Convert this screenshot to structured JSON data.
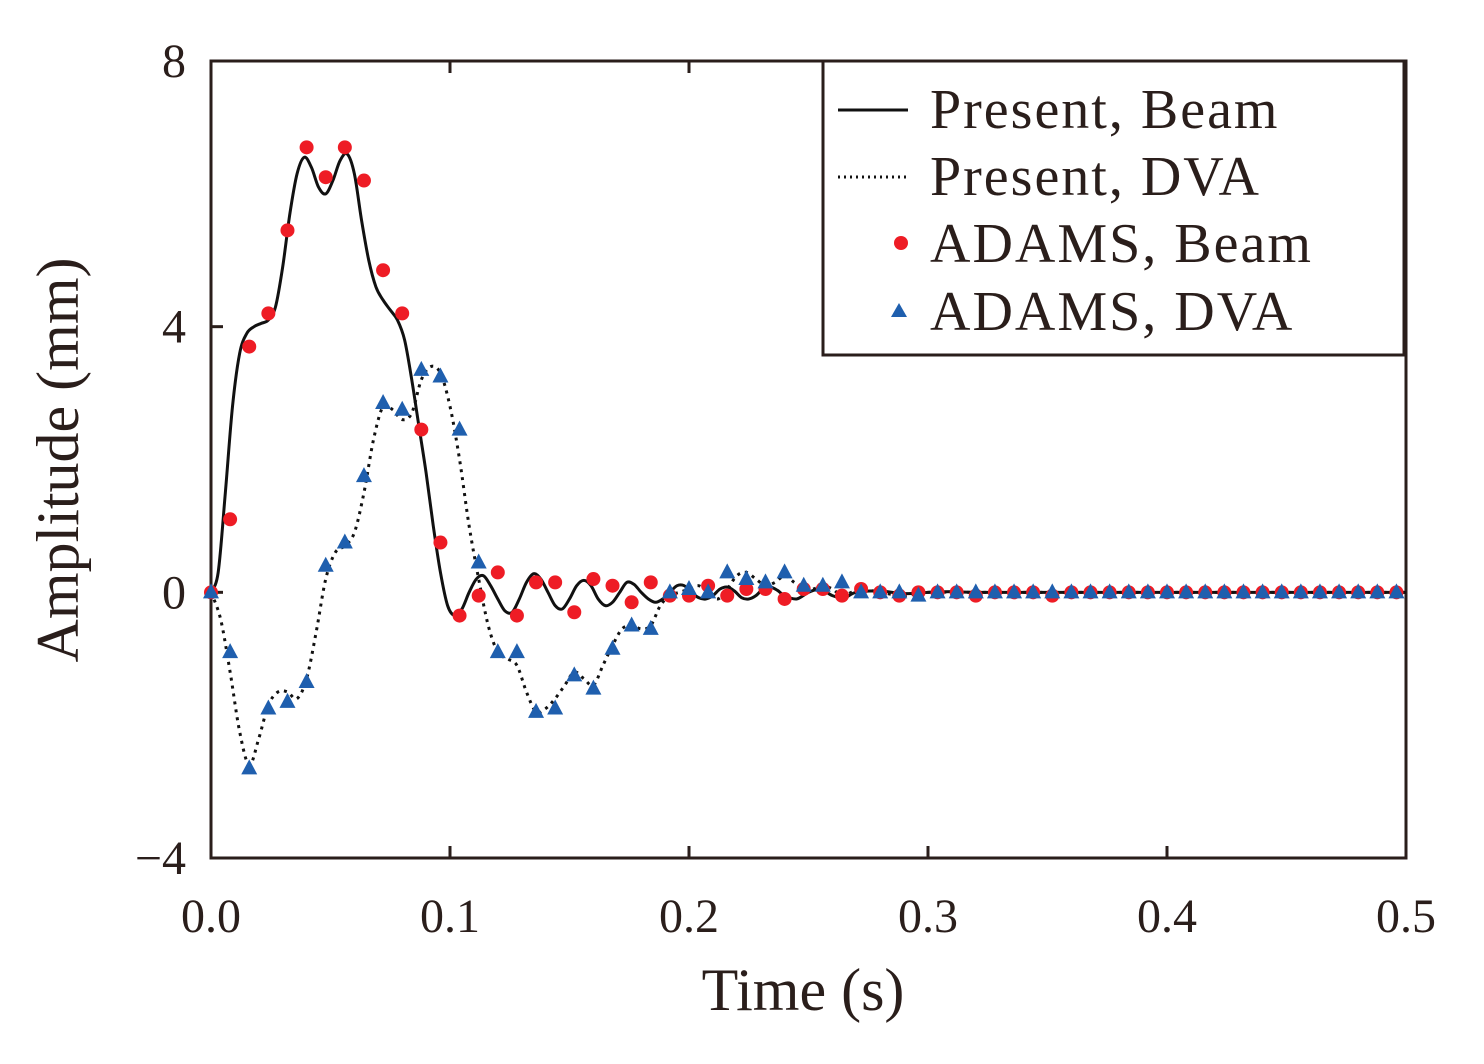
{
  "chart_data": {
    "type": "line",
    "title": "",
    "xlabel": "Time (s)",
    "ylabel": "Amplitude (mm)",
    "xlim": [
      0.0,
      0.5
    ],
    "ylim": [
      -4,
      8
    ],
    "x_ticks": [
      0.0,
      0.1,
      0.2,
      0.3,
      0.4,
      0.5
    ],
    "x_tick_labels": [
      "0.0",
      "0.1",
      "0.2",
      "0.3",
      "0.4",
      "0.5"
    ],
    "y_ticks": [
      -4,
      0,
      4,
      8
    ],
    "y_tick_labels": [
      "−4",
      "0",
      "4",
      "8"
    ],
    "grid": false,
    "legend_position": "top-right",
    "colors": {
      "axis": "#2a1e1b",
      "line": "#111111",
      "beam_marker": "#ee1c25",
      "dva_marker": "#1f5fae"
    },
    "series": [
      {
        "name": "Present, Beam",
        "style": "solid",
        "x": [
          0.0,
          0.003,
          0.006,
          0.009,
          0.012,
          0.015,
          0.018,
          0.021,
          0.024,
          0.027,
          0.03,
          0.033,
          0.036,
          0.039,
          0.042,
          0.045,
          0.048,
          0.051,
          0.054,
          0.057,
          0.06,
          0.063,
          0.066,
          0.069,
          0.072,
          0.075,
          0.078,
          0.081,
          0.084,
          0.087,
          0.09,
          0.093,
          0.096,
          0.099,
          0.102,
          0.105,
          0.108,
          0.111,
          0.114,
          0.117,
          0.12,
          0.123,
          0.126,
          0.129,
          0.132,
          0.135,
          0.138,
          0.141,
          0.144,
          0.147,
          0.15,
          0.153,
          0.156,
          0.159,
          0.162,
          0.165,
          0.168,
          0.171,
          0.174,
          0.177,
          0.18,
          0.183,
          0.186,
          0.189,
          0.192,
          0.195,
          0.198,
          0.201,
          0.204,
          0.207,
          0.21,
          0.213,
          0.216,
          0.219,
          0.222,
          0.225,
          0.228,
          0.231,
          0.234,
          0.237,
          0.24,
          0.245,
          0.25,
          0.255,
          0.26,
          0.265,
          0.27,
          0.28,
          0.29,
          0.3,
          0.31,
          0.32,
          0.34,
          0.36,
          0.4,
          0.45,
          0.5
        ],
        "values": [
          0.0,
          0.3,
          1.5,
          2.8,
          3.6,
          3.9,
          4.0,
          4.05,
          4.1,
          4.3,
          4.9,
          5.7,
          6.3,
          6.55,
          6.4,
          6.1,
          6.0,
          6.2,
          6.5,
          6.6,
          6.3,
          5.6,
          5.0,
          4.6,
          4.4,
          4.25,
          4.1,
          3.8,
          3.2,
          2.5,
          1.8,
          1.0,
          0.3,
          -0.2,
          -0.35,
          -0.25,
          0.0,
          0.2,
          0.25,
          0.1,
          -0.1,
          -0.28,
          -0.3,
          -0.1,
          0.15,
          0.28,
          0.2,
          0.0,
          -0.2,
          -0.25,
          -0.1,
          0.1,
          0.18,
          0.1,
          -0.1,
          -0.2,
          -0.15,
          0.0,
          0.15,
          0.12,
          0.0,
          -0.1,
          -0.15,
          -0.1,
          0.0,
          0.1,
          0.1,
          0.0,
          -0.08,
          -0.1,
          -0.05,
          0.05,
          0.08,
          0.02,
          -0.08,
          -0.1,
          -0.05,
          0.05,
          0.08,
          0.03,
          -0.05,
          -0.1,
          0.0,
          0.05,
          -0.05,
          -0.08,
          0.0,
          0.02,
          -0.02,
          0.0,
          0.01,
          0.0,
          0.0,
          0.0,
          0.0,
          0.0,
          0.0
        ]
      },
      {
        "name": "Present, DVA",
        "style": "dotted",
        "x": [
          0.0,
          0.004,
          0.008,
          0.012,
          0.016,
          0.02,
          0.024,
          0.028,
          0.032,
          0.036,
          0.04,
          0.044,
          0.048,
          0.052,
          0.056,
          0.06,
          0.064,
          0.068,
          0.072,
          0.076,
          0.08,
          0.084,
          0.088,
          0.092,
          0.096,
          0.1,
          0.104,
          0.108,
          0.112,
          0.116,
          0.12,
          0.124,
          0.128,
          0.132,
          0.136,
          0.14,
          0.144,
          0.148,
          0.152,
          0.156,
          0.16,
          0.164,
          0.168,
          0.172,
          0.176,
          0.18,
          0.184,
          0.188,
          0.192,
          0.196,
          0.2,
          0.204,
          0.208,
          0.212,
          0.216,
          0.22,
          0.224,
          0.228,
          0.232,
          0.236,
          0.24,
          0.244,
          0.248,
          0.252,
          0.256,
          0.26,
          0.264,
          0.268,
          0.272,
          0.28,
          0.29,
          0.3,
          0.32,
          0.35,
          0.4,
          0.45,
          0.5
        ],
        "values": [
          0.0,
          -0.4,
          -1.2,
          -2.1,
          -2.6,
          -2.2,
          -1.7,
          -1.5,
          -1.5,
          -1.6,
          -1.3,
          -0.6,
          0.2,
          0.6,
          0.7,
          0.9,
          1.5,
          2.3,
          2.8,
          2.75,
          2.6,
          2.7,
          3.2,
          3.4,
          3.3,
          2.8,
          2.0,
          1.0,
          0.2,
          -0.5,
          -0.9,
          -1.0,
          -1.1,
          -1.5,
          -1.8,
          -1.75,
          -1.6,
          -1.4,
          -1.2,
          -1.3,
          -1.4,
          -1.1,
          -0.8,
          -0.55,
          -0.5,
          -0.55,
          -0.5,
          -0.2,
          -0.05,
          0.0,
          0.05,
          0.1,
          0.0,
          -0.1,
          0.05,
          0.25,
          0.3,
          0.2,
          0.1,
          0.15,
          0.25,
          0.15,
          0.05,
          0.05,
          0.1,
          0.05,
          -0.05,
          0.0,
          0.05,
          0.0,
          -0.05,
          0.0,
          0.0,
          0.0,
          0.0,
          0.0,
          0.0
        ]
      },
      {
        "name": "ADAMS, Beam",
        "style": "marker-circle",
        "x": [
          0.0,
          0.008,
          0.016,
          0.024,
          0.032,
          0.04,
          0.048,
          0.056,
          0.064,
          0.072,
          0.08,
          0.088,
          0.096,
          0.104,
          0.112,
          0.12,
          0.128,
          0.136,
          0.144,
          0.152,
          0.16,
          0.168,
          0.176,
          0.184,
          0.192,
          0.2,
          0.208,
          0.216,
          0.224,
          0.232,
          0.24,
          0.248,
          0.256,
          0.264,
          0.272,
          0.28,
          0.288,
          0.296,
          0.304,
          0.312,
          0.32,
          0.328,
          0.336,
          0.344,
          0.352,
          0.36,
          0.368,
          0.376,
          0.384,
          0.392,
          0.4,
          0.408,
          0.416,
          0.424,
          0.432,
          0.44,
          0.448,
          0.456,
          0.464,
          0.472,
          0.48,
          0.488,
          0.496
        ],
        "values": [
          0.0,
          1.1,
          3.7,
          4.2,
          5.45,
          6.7,
          6.25,
          6.7,
          6.2,
          4.85,
          4.2,
          2.45,
          0.75,
          -0.35,
          -0.05,
          0.3,
          -0.35,
          0.15,
          0.15,
          -0.3,
          0.2,
          0.1,
          -0.15,
          0.15,
          -0.05,
          -0.05,
          0.1,
          -0.05,
          0.05,
          0.05,
          -0.1,
          0.05,
          0.05,
          -0.05,
          0.05,
          0.0,
          -0.05,
          0.0,
          0.0,
          0.0,
          -0.05,
          0.0,
          0.0,
          0.0,
          -0.05,
          0.0,
          0.0,
          0.0,
          0.0,
          0.0,
          0.0,
          0.0,
          0.0,
          0.0,
          0.0,
          0.0,
          0.0,
          0.0,
          0.0,
          0.0,
          0.0,
          0.0,
          0.0
        ]
      },
      {
        "name": "ADAMS, DVA",
        "style": "marker-triangle",
        "x": [
          0.0,
          0.008,
          0.016,
          0.024,
          0.032,
          0.04,
          0.048,
          0.056,
          0.064,
          0.072,
          0.08,
          0.088,
          0.096,
          0.104,
          0.112,
          0.12,
          0.128,
          0.136,
          0.144,
          0.152,
          0.16,
          0.168,
          0.176,
          0.184,
          0.192,
          0.2,
          0.208,
          0.216,
          0.224,
          0.232,
          0.24,
          0.248,
          0.256,
          0.264,
          0.272,
          0.28,
          0.288,
          0.296,
          0.304,
          0.312,
          0.32,
          0.328,
          0.336,
          0.344,
          0.352,
          0.36,
          0.368,
          0.376,
          0.384,
          0.392,
          0.4,
          0.408,
          0.416,
          0.424,
          0.432,
          0.44,
          0.448,
          0.456,
          0.464,
          0.472,
          0.48,
          0.488,
          0.496
        ],
        "values": [
          0.0,
          -0.9,
          -2.65,
          -1.75,
          -1.65,
          -1.35,
          0.4,
          0.75,
          1.75,
          2.85,
          2.75,
          3.35,
          3.25,
          2.45,
          0.45,
          -0.9,
          -0.9,
          -1.8,
          -1.75,
          -1.25,
          -1.45,
          -0.85,
          -0.5,
          -0.55,
          0.0,
          0.05,
          0.0,
          0.3,
          0.2,
          0.15,
          0.3,
          0.1,
          0.1,
          0.15,
          0.0,
          0.0,
          0.0,
          -0.05,
          0.0,
          0.0,
          0.0,
          0.0,
          0.0,
          0.0,
          0.0,
          0.0,
          0.0,
          0.0,
          0.0,
          0.0,
          0.0,
          0.0,
          0.0,
          0.0,
          0.0,
          0.0,
          0.0,
          0.0,
          0.0,
          0.0,
          0.0,
          0.0,
          0.0
        ]
      }
    ]
  }
}
